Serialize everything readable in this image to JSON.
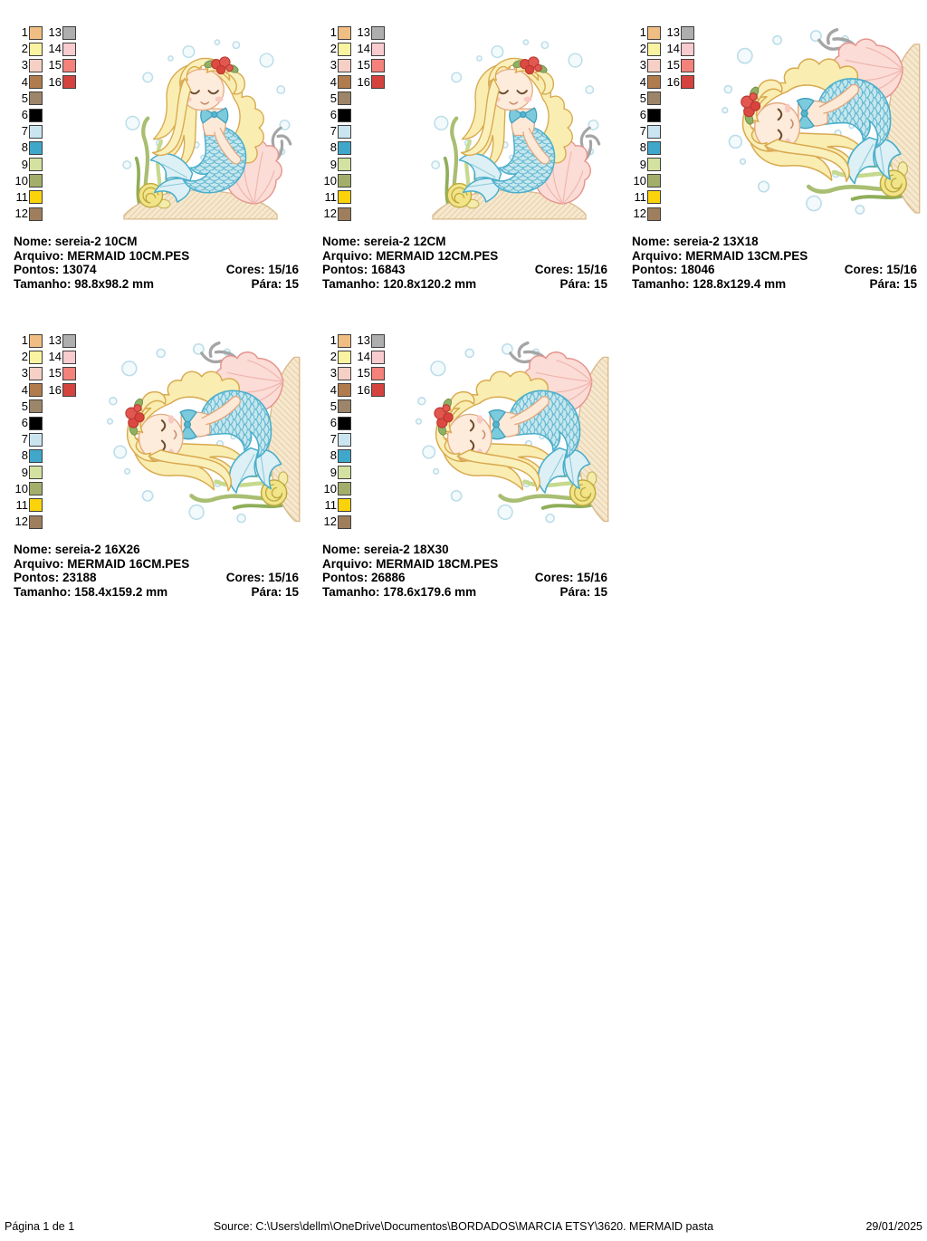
{
  "palette": {
    "rows": [
      {
        "ln": "1",
        "lc": "#F0BE82",
        "rn": "13",
        "rc": "#AEAEAE"
      },
      {
        "ln": "2",
        "lc": "#FAF3A1",
        "rn": "14",
        "rc": "#F8CBCE"
      },
      {
        "ln": "3",
        "lc": "#F6CFC5",
        "rn": "15",
        "rc": "#F4817A"
      },
      {
        "ln": "4",
        "lc": "#B07C4E",
        "rn": "16",
        "rc": "#D5433E"
      },
      {
        "ln": "5",
        "lc": "#9C8569"
      },
      {
        "ln": "6",
        "lc": "#000000"
      },
      {
        "ln": "7",
        "lc": "#CBE5F0"
      },
      {
        "ln": "8",
        "lc": "#3FA8CA"
      },
      {
        "ln": "9",
        "lc": "#D3E2A0"
      },
      {
        "ln": "10",
        "lc": "#A3AE6A"
      },
      {
        "ln": "11",
        "lc": "#FBD30B"
      },
      {
        "ln": "12",
        "lc": "#9E7E5C"
      }
    ]
  },
  "cards": [
    {
      "nome": "Nome: sereia-2 10CM",
      "arquivo": "Arquivo: MERMAID 10CM.PES",
      "pontos": "Pontos: 13074",
      "cores": "Cores: 15/16",
      "tamanho": "Tamanho: 98.8x98.2 mm",
      "para": "Pára: 15"
    },
    {
      "nome": "Nome: sereia-2 12CM",
      "arquivo": "Arquivo: MERMAID 12CM.PES",
      "pontos": "Pontos: 16843",
      "cores": "Cores: 15/16",
      "tamanho": "Tamanho: 120.8x120.2 mm",
      "para": "Pára: 15"
    },
    {
      "nome": "Nome: sereia-2 13X18",
      "arquivo": "Arquivo: MERMAID 13CM.PES",
      "pontos": "Pontos: 18046",
      "cores": "Cores: 15/16",
      "tamanho": "Tamanho: 128.8x129.4 mm",
      "para": "Pára: 15"
    },
    {
      "nome": "Nome: sereia-2 16X26",
      "arquivo": "Arquivo: MERMAID 16CM.PES",
      "pontos": "Pontos: 23188",
      "cores": "Cores: 15/16",
      "tamanho": "Tamanho: 158.4x159.2 mm",
      "para": "Pára: 15"
    },
    {
      "nome": "Nome: sereia-2 18X30",
      "arquivo": "Arquivo: MERMAID 18CM.PES",
      "pontos": "Pontos: 26886",
      "cores": "Cores: 15/16",
      "tamanho": "Tamanho: 178.6x179.6 mm",
      "para": "Pára: 15"
    }
  ],
  "footer": {
    "page_label": "Página 1 de 1",
    "source": "Source: C:\\Users\\dellm\\OneDrive\\Documentos\\BORDADOS\\MARCIA ETSY\\3620. MERMAID pasta",
    "date": "29/01/2025"
  }
}
